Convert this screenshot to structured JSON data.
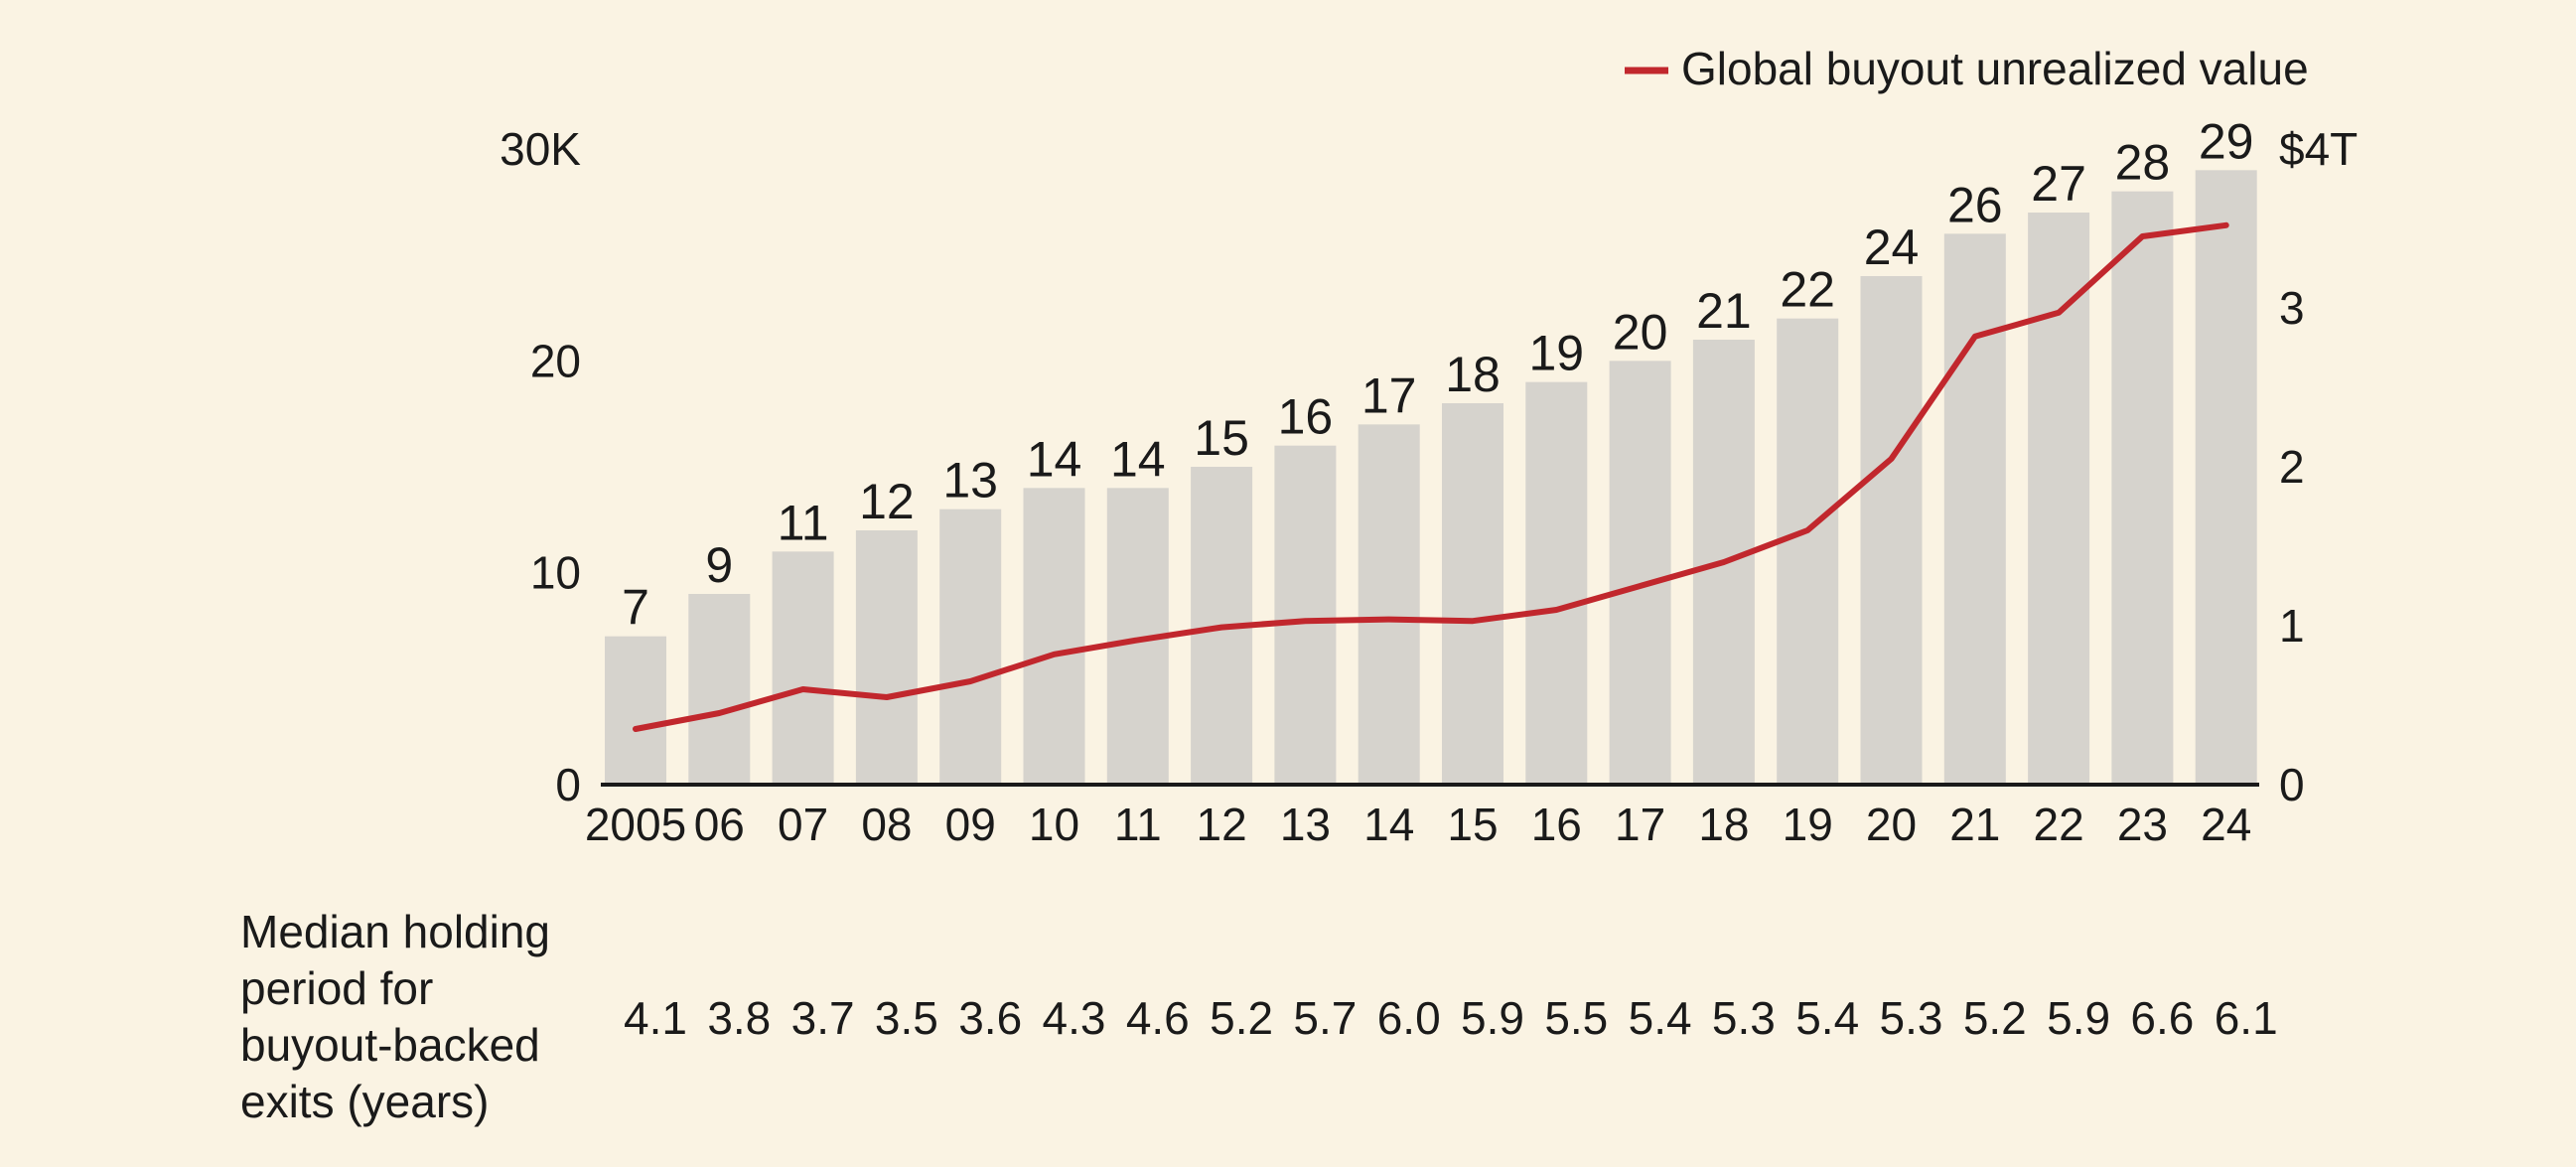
{
  "colors": {
    "background": "#faf3e3",
    "bar": "#d6d3cd",
    "line": "#c1272d",
    "text": "#1a1a1a",
    "axis": "#1a1a1a"
  },
  "chart_data": {
    "type": "bar",
    "categories": [
      "2005",
      "06",
      "07",
      "08",
      "09",
      "10",
      "11",
      "12",
      "13",
      "14",
      "15",
      "16",
      "17",
      "18",
      "19",
      "20",
      "21",
      "22",
      "23",
      "24"
    ],
    "series": [
      {
        "values": [
          7,
          9,
          11,
          12,
          13,
          14,
          14,
          15,
          16,
          17,
          18,
          19,
          20,
          21,
          22,
          24,
          26,
          27,
          28,
          29
        ],
        "axis": "left",
        "type": "bar"
      },
      {
        "name": "Global buyout unrealized value",
        "values": [
          0.35,
          0.45,
          0.6,
          0.55,
          0.65,
          0.82,
          0.91,
          0.99,
          1.03,
          1.04,
          1.03,
          1.1,
          1.25,
          1.4,
          1.6,
          2.05,
          2.82,
          2.97,
          3.45,
          3.52
        ],
        "axis": "right",
        "type": "line"
      }
    ],
    "data_labels": [
      "7",
      "9",
      "11",
      "12",
      "13",
      "14",
      "14",
      "15",
      "16",
      "17",
      "18",
      "19",
      "20",
      "21",
      "22",
      "24",
      "26",
      "27",
      "28",
      "29"
    ],
    "left_axis": {
      "ticks": [
        "0",
        "10",
        "20",
        "30K"
      ],
      "range": [
        0,
        30
      ]
    },
    "right_axis": {
      "ticks": [
        "0",
        "1",
        "2",
        "3",
        "$4T"
      ],
      "range": [
        0,
        4
      ]
    },
    "legend": {
      "label": "Global buyout unrealized value",
      "placement": "top-right"
    },
    "bottom_row": {
      "label": "Median holding period for buyout-backed exits (years)",
      "values": [
        "4.1",
        "3.8",
        "3.7",
        "3.5",
        "3.6",
        "4.3",
        "4.6",
        "5.2",
        "5.7",
        "6.0",
        "5.9",
        "5.5",
        "5.4",
        "5.3",
        "5.4",
        "5.3",
        "5.2",
        "5.9",
        "6.6",
        "6.1"
      ]
    },
    "grid": false
  }
}
